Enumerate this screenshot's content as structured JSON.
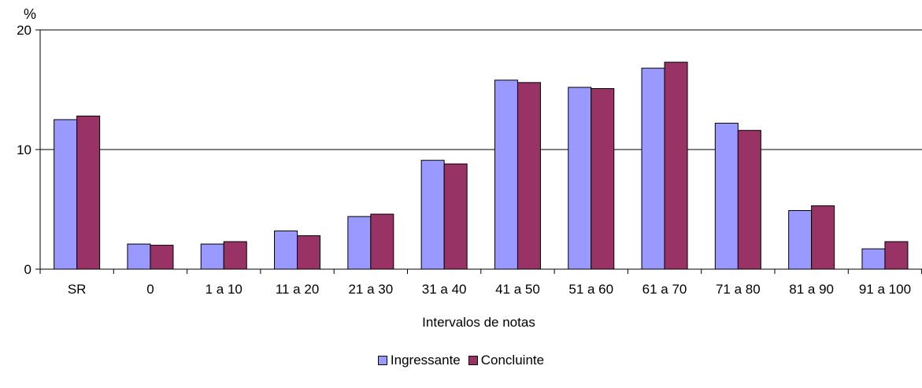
{
  "chart_data": {
    "type": "bar",
    "unit_label": "%",
    "xlabel": "Intervalos de notas",
    "ylabel": "",
    "ylim": [
      0,
      20
    ],
    "yticks": [
      0,
      10,
      20
    ],
    "grid": true,
    "legend_position": "bottom",
    "categories": [
      "SR",
      "0",
      "1 a 10",
      "11 a 20",
      "21 a 30",
      "31 a 40",
      "41 a 50",
      "51 a 60",
      "61 a 70",
      "71 a 80",
      "81 a 90",
      "91 a 100"
    ],
    "series": [
      {
        "name": "Ingressante",
        "color": "#9999ff",
        "values": [
          12.5,
          2.1,
          2.1,
          3.2,
          4.4,
          9.1,
          15.8,
          15.2,
          16.8,
          12.2,
          4.9,
          1.7
        ]
      },
      {
        "name": "Concluinte",
        "color": "#993366",
        "values": [
          12.8,
          2.0,
          2.3,
          2.8,
          4.6,
          8.8,
          15.6,
          15.1,
          17.3,
          11.6,
          5.3,
          2.3
        ]
      }
    ]
  }
}
